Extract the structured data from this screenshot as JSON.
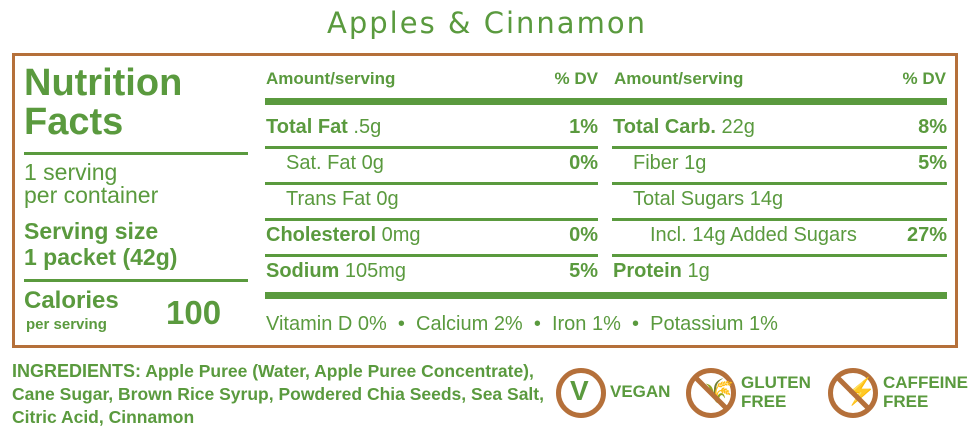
{
  "title": "Apples & Cinnamon",
  "left": {
    "heading1": "Nutrition",
    "heading2": "Facts",
    "servings1": "1 serving",
    "servings2": "per container",
    "serving_size_label": "Serving size",
    "serving_size_value": "1 packet (42g)",
    "calories_label": "Calories",
    "calories_sub": "per serving",
    "calories_value": "100"
  },
  "headers": {
    "amount": "Amount/serving",
    "dv": "% DV"
  },
  "left_rows": [
    {
      "name": "Total Fat",
      "value": ".5g",
      "dv": "1%",
      "bold": true
    },
    {
      "name": "Sat. Fat",
      "value": "0g",
      "dv": "0%",
      "bold": false
    },
    {
      "name": "Trans Fat",
      "value": "0g",
      "dv": "",
      "bold": false
    },
    {
      "name": "Cholesterol",
      "value": "0mg",
      "dv": "0%",
      "bold": true
    },
    {
      "name": "Sodium",
      "value": "105mg",
      "dv": "5%",
      "bold": true
    }
  ],
  "right_rows": [
    {
      "name": "Total Carb.",
      "value": "22g",
      "dv": "8%",
      "bold": true
    },
    {
      "name": "Fiber",
      "value": "1g",
      "dv": "5%",
      "bold": false
    },
    {
      "name": "Total Sugars",
      "value": "14g",
      "dv": "",
      "bold": false
    },
    {
      "name": "Incl. 14g Added Sugars",
      "value": "",
      "dv": "27%",
      "bold": false
    },
    {
      "name": "Protein",
      "value": "1g",
      "dv": "",
      "bold": true
    }
  ],
  "vitamins": "Vitamin D 0%  •  Calcium 2%  •  Iron 1%  •  Potassium 1%",
  "ingredients": {
    "label": "INGREDIENTS:",
    "text": " Apple Puree (Water, Apple Puree Concentrate), Cane Sugar, Brown Rice Syrup, Powdered Chia Seeds, Sea Salt, Citric Acid, Cinnamon"
  },
  "badges": [
    {
      "icon": "vegan-icon",
      "line1": "VEGAN",
      "line2": ""
    },
    {
      "icon": "gluten-free-icon",
      "line1": "GLUTEN",
      "line2": "FREE"
    },
    {
      "icon": "caffeine-free-icon",
      "line1": "CAFFEINE",
      "line2": "FREE"
    }
  ],
  "colors": {
    "green": "#5a9a3e",
    "brown": "#b5703a"
  }
}
